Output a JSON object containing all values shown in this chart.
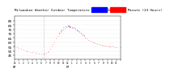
{
  "title": "Milwaukee Weather Outdoor Temperature vs Heat Index per Minute (24 Hours)",
  "background_color": "#ffffff",
  "plot_bg_color": "#ffffff",
  "grid_color": "#cccccc",
  "legend_temp_color": "#0000ff",
  "legend_hi_color": "#ff0000",
  "dot_color_temp": "#ff0000",
  "dot_color_hi": "#0000ff",
  "ylim": [
    40,
    90
  ],
  "yticks": [
    45,
    50,
    55,
    60,
    65,
    70,
    75,
    80,
    85
  ],
  "xlabel_color": "#000000",
  "title_fontsize": 3.0,
  "tick_fontsize": 3.0,
  "dot_size": 0.5,
  "x_tick_positions": [
    0,
    60,
    120,
    180,
    240,
    300,
    360,
    420,
    480,
    540,
    600,
    660,
    720,
    780,
    840,
    900,
    960,
    1020,
    1080,
    1140,
    1200,
    1260,
    1320,
    1380,
    1440
  ],
  "x_tick_labels": [
    "12\nAM",
    "1",
    "2",
    "3",
    "4",
    "5",
    "6",
    "7",
    "8",
    "9",
    "10",
    "11",
    "12\nPM",
    "1",
    "2",
    "3",
    "4",
    "5",
    "6",
    "7",
    "8",
    "9",
    "10",
    "11",
    ""
  ],
  "temp_curve": [
    [
      0,
      55
    ],
    [
      30,
      54
    ],
    [
      60,
      53
    ],
    [
      90,
      52
    ],
    [
      120,
      51
    ],
    [
      150,
      50
    ],
    [
      180,
      50
    ],
    [
      210,
      49
    ],
    [
      240,
      49
    ],
    [
      270,
      48
    ],
    [
      300,
      48
    ],
    [
      330,
      47
    ],
    [
      360,
      47
    ],
    [
      390,
      47
    ],
    [
      410,
      47
    ],
    [
      430,
      48
    ],
    [
      450,
      49
    ],
    [
      460,
      50
    ],
    [
      480,
      52
    ],
    [
      500,
      55
    ],
    [
      520,
      58
    ],
    [
      540,
      61
    ],
    [
      560,
      64
    ],
    [
      580,
      67
    ],
    [
      600,
      70
    ],
    [
      620,
      72
    ],
    [
      640,
      74
    ],
    [
      660,
      75
    ],
    [
      680,
      76
    ],
    [
      700,
      77
    ],
    [
      720,
      78
    ],
    [
      730,
      78
    ],
    [
      740,
      78
    ],
    [
      750,
      77
    ],
    [
      760,
      77
    ],
    [
      780,
      76
    ],
    [
      800,
      76
    ],
    [
      820,
      75
    ],
    [
      840,
      74
    ],
    [
      860,
      73
    ],
    [
      880,
      72
    ],
    [
      900,
      70
    ],
    [
      920,
      68
    ],
    [
      940,
      67
    ],
    [
      960,
      65
    ],
    [
      980,
      64
    ],
    [
      1000,
      63
    ],
    [
      1020,
      62
    ],
    [
      1040,
      61
    ],
    [
      1060,
      60
    ],
    [
      1080,
      60
    ],
    [
      1100,
      59
    ],
    [
      1120,
      58
    ],
    [
      1140,
      58
    ],
    [
      1160,
      57
    ],
    [
      1180,
      57
    ],
    [
      1200,
      56
    ],
    [
      1220,
      56
    ],
    [
      1240,
      56
    ],
    [
      1260,
      55
    ],
    [
      1280,
      55
    ],
    [
      1300,
      55
    ],
    [
      1320,
      55
    ],
    [
      1340,
      55
    ],
    [
      1360,
      54
    ],
    [
      1380,
      54
    ],
    [
      1440,
      54
    ]
  ],
  "hi_curve": [
    [
      600,
      71
    ],
    [
      620,
      73
    ],
    [
      640,
      75
    ],
    [
      660,
      77
    ],
    [
      680,
      78
    ],
    [
      700,
      78
    ],
    [
      720,
      79
    ],
    [
      730,
      79
    ],
    [
      740,
      79
    ],
    [
      750,
      78
    ],
    [
      760,
      78
    ],
    [
      780,
      77
    ],
    [
      800,
      77
    ],
    [
      820,
      76
    ],
    [
      840,
      75
    ],
    [
      860,
      74
    ],
    [
      880,
      73
    ],
    [
      900,
      71
    ],
    [
      920,
      69
    ],
    [
      940,
      68
    ]
  ],
  "vline_x": 390,
  "vline_color": "#888888"
}
